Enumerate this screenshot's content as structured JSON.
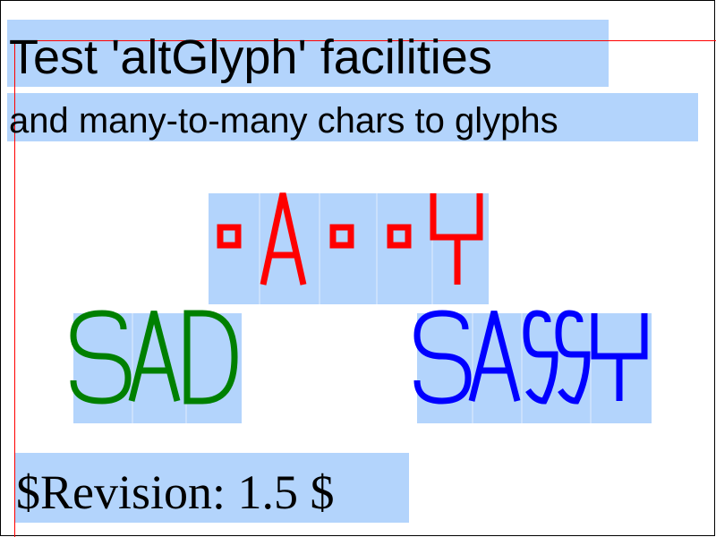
{
  "title": "Test 'altGlyph' facilities",
  "subtitle": "and many-to-many chars to glyphs",
  "revision": "$Revision: 1.5 $",
  "glyph_rows": [
    {
      "name": "red-glyph-row",
      "color": "#ff0000",
      "glyphs": [
        "box",
        "A",
        "box",
        "box",
        "Y"
      ]
    },
    {
      "name": "sad-word",
      "text": "SAD",
      "color": "#008000",
      "glyphs": [
        "S",
        "A",
        "D"
      ]
    },
    {
      "name": "sassy-word",
      "text": "SASSY",
      "color": "#0000ff",
      "glyphs": [
        "S",
        "A",
        "SS",
        "Y"
      ]
    }
  ],
  "colors": {
    "highlight": "#b3d4fc",
    "frame": "#000000",
    "guide": "#ff0000"
  }
}
